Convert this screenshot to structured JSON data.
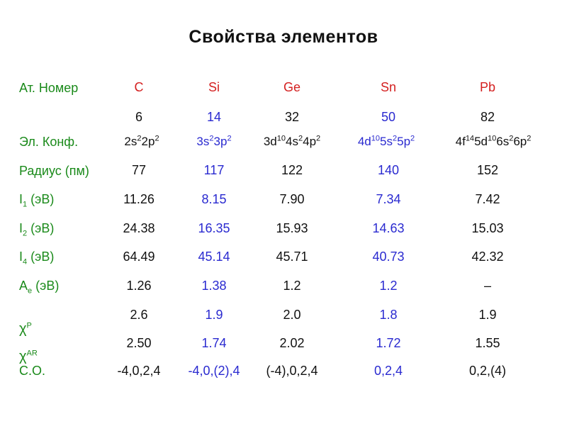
{
  "title": "Свойства элементов",
  "labels": {
    "atomic_number": "Ат. Номер",
    "el_conf": "Эл. Конф.",
    "radius": "Радиус (пм)",
    "i1": {
      "base": "I",
      "sub": "1",
      "rest": " (эВ)"
    },
    "i2": {
      "base": "I",
      "sub": "2",
      "rest": " (эВ)"
    },
    "i4": {
      "base": "I",
      "sub": "4",
      "rest": " (эВ)"
    },
    "ae": {
      "base": "A",
      "sub": "e",
      "rest": " (эВ)"
    },
    "chi_p": {
      "base": "χ",
      "sup": "P"
    },
    "chi_ar": {
      "base": "χ",
      "sup": "AR"
    },
    "so": "С.О."
  },
  "elements": [
    {
      "symbol": "C",
      "number": "6",
      "conf": [
        {
          "t": "2s"
        },
        {
          "s": "2"
        },
        {
          "t": "2p"
        },
        {
          "s": "2"
        }
      ],
      "radius": "77",
      "i1": "11.26",
      "i2": "24.38",
      "i4": "64.49",
      "ae": "1.26",
      "chi_p": "2.6",
      "chi_ar": "2.50",
      "so": "-4,0,2,4"
    },
    {
      "symbol": "Si",
      "number": "14",
      "conf": [
        {
          "t": "3s"
        },
        {
          "s": "2"
        },
        {
          "t": "3p"
        },
        {
          "s": "2"
        }
      ],
      "radius": "117",
      "i1": "8.15",
      "i2": "16.35",
      "i4": "45.14",
      "ae": "1.38",
      "chi_p": "1.9",
      "chi_ar": "1.74",
      "so": "-4,0,(2),4"
    },
    {
      "symbol": "Ge",
      "number": "32",
      "conf": [
        {
          "t": "3d"
        },
        {
          "s": "10"
        },
        {
          "t": "4s"
        },
        {
          "s": "2"
        },
        {
          "t": "4p"
        },
        {
          "s": "2"
        }
      ],
      "radius": "122",
      "i1": "7.90",
      "i2": "15.93",
      "i4": "45.71",
      "ae": "1.2",
      "chi_p": "2.0",
      "chi_ar": "2.02",
      "so": "(-4),0,2,4"
    },
    {
      "symbol": "Sn",
      "number": "50",
      "conf": [
        {
          "t": "4d"
        },
        {
          "s": "10"
        },
        {
          "t": "5s"
        },
        {
          "s": "2"
        },
        {
          "t": "5p"
        },
        {
          "s": "2"
        }
      ],
      "radius": "140",
      "i1": "7.34",
      "i2": "14.63",
      "i4": "40.73",
      "ae": "1.2",
      "chi_p": "1.8",
      "chi_ar": "1.72",
      "so": "0,2,4"
    },
    {
      "symbol": "Pb",
      "number": "82",
      "conf": [
        {
          "t": "4f"
        },
        {
          "s": "14"
        },
        {
          "t": "5d"
        },
        {
          "s": "10"
        },
        {
          "t": "6s"
        },
        {
          "s": "2"
        },
        {
          "t": "6p"
        },
        {
          "s": "2"
        }
      ],
      "radius": "152",
      "i1": "7.42",
      "i2": "15.03",
      "i4": "42.32",
      "ae": "–",
      "chi_p": "1.9",
      "chi_ar": "1.55",
      "so": "0,2,(4)"
    }
  ],
  "colors": {
    "label": "#1a8a1a",
    "symbol": "#d42020",
    "blue": "#2a2ad0",
    "black": "#111111"
  }
}
